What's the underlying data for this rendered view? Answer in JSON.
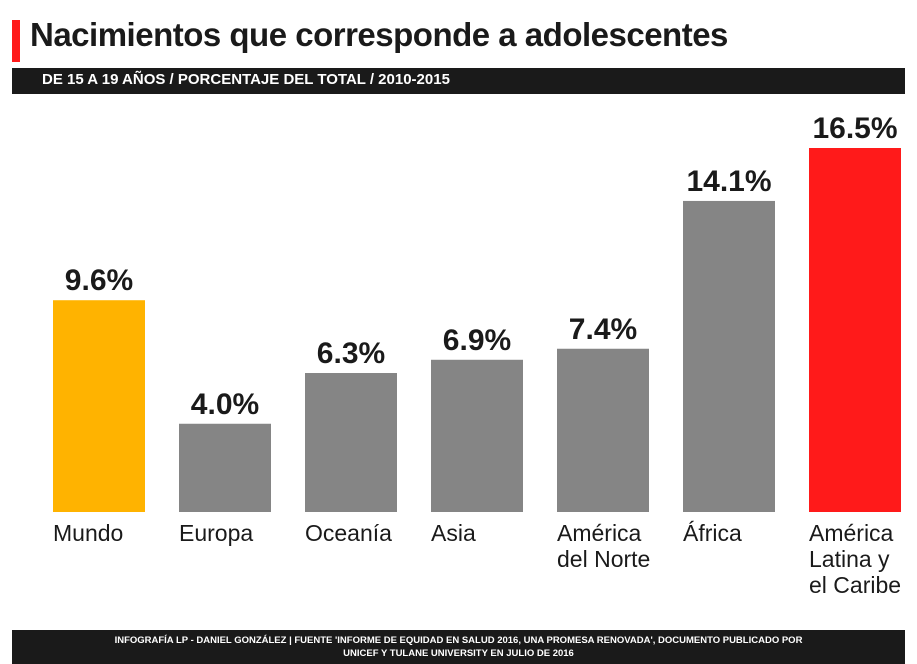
{
  "header": {
    "title": "Nacimientos que corresponde a adolescentes",
    "subtitle": "DE 15 A 19 AÑOS / PORCENTAJE DEL TOTAL / 2010-2015"
  },
  "footer": {
    "line1": "INFOGRAFÍA LP - DANIEL GONZÁLEZ | FUENTE 'INFORME DE EQUIDAD EN SALUD 2016, UNA PROMESA RENOVADA', DOCUMENTO PUBLICADO POR",
    "line2": "UNICEF Y TULANE UNIVERSITY EN JULIO DE 2016"
  },
  "colors": {
    "accent": "#ff1a1a",
    "default_bar": "#858585",
    "mundo_bar": "#ffb300",
    "latam_bar": "#ff1a1a",
    "dark_band": "#1a1a1a",
    "text": "#1a1a1a"
  },
  "chart_data": {
    "type": "bar",
    "title": "Nacimientos que corresponde a adolescentes",
    "subtitle": "DE 15 A 19 AÑOS / PORCENTAJE DEL TOTAL / 2010-2015",
    "categories": [
      [
        "Mundo"
      ],
      [
        "Europa"
      ],
      [
        "Oceanía"
      ],
      [
        "Asia"
      ],
      [
        "América",
        "del Norte"
      ],
      [
        "África"
      ],
      [
        "América",
        "Latina y",
        "el Caribe"
      ]
    ],
    "values": [
      9.6,
      4.0,
      6.3,
      6.9,
      7.4,
      14.1,
      16.5
    ],
    "value_labels": [
      "9.6%",
      "4.0%",
      "6.3%",
      "6.9%",
      "7.4%",
      "14.1%",
      "16.5%"
    ],
    "bar_colors": [
      "#ffb300",
      "#858585",
      "#858585",
      "#858585",
      "#858585",
      "#858585",
      "#ff1a1a"
    ],
    "ylim": [
      0,
      16.5
    ],
    "grid": false,
    "legend": "none"
  }
}
